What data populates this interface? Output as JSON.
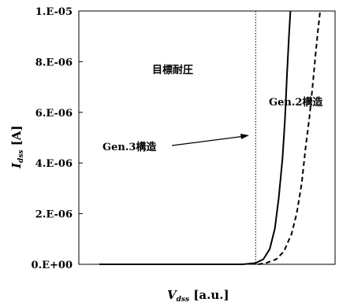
{
  "chart_data": {
    "type": "line",
    "xlabel": "V",
    "xlabel_sub": "dss",
    "xlabel_unit": "[a.u.]",
    "ylabel": "I",
    "ylabel_sub": "dss",
    "ylabel_unit": "[A]",
    "ylim": [
      0,
      1e-05
    ],
    "yticks": [
      "0.E+00",
      "2.E-06",
      "4.E-06",
      "6.E-06",
      "8.E-06",
      "1.E-05"
    ],
    "xlim": [
      0,
      10
    ],
    "grid": false,
    "target_line": {
      "x": 6.9,
      "label": "目標耐圧"
    },
    "series": [
      {
        "name": "Gen.3構造",
        "style": "solid",
        "color": "#000000",
        "x": [
          0.8,
          4,
          6.4,
          6.9,
          7.2,
          7.45,
          7.65,
          7.8,
          7.95,
          8.05,
          8.12,
          8.2,
          8.26
        ],
        "y": [
          0,
          0,
          0,
          5e-08,
          2e-07,
          6e-07,
          1.4e-06,
          2.6e-06,
          4.2e-06,
          5.8e-06,
          7.4e-06,
          9e-06,
          1e-05
        ]
      },
      {
        "name": "Gen.2構造",
        "style": "dashed",
        "color": "#000000",
        "x": [
          7.0,
          7.3,
          7.7,
          8.0,
          8.3,
          8.5,
          8.7,
          8.85,
          9.0,
          9.12,
          9.23,
          9.33,
          9.42
        ],
        "y": [
          0,
          5e-08,
          2e-07,
          5e-07,
          1.2e-06,
          2e-06,
          3.2e-06,
          4.6e-06,
          5.8e-06,
          7e-06,
          8.2e-06,
          9.2e-06,
          1e-05
        ]
      }
    ],
    "annotations": [
      {
        "text": "Gen.3構造",
        "points_to": "Gen.3構造"
      },
      {
        "text": "Gen.2構造",
        "points_to": "Gen.2構造"
      }
    ]
  }
}
